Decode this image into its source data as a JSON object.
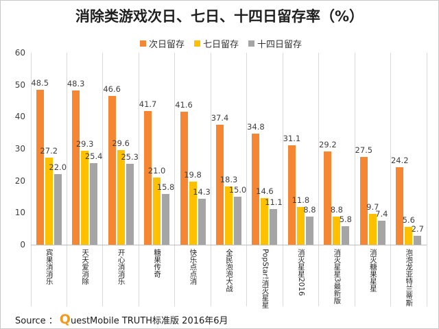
{
  "chart_data": {
    "type": "bar",
    "title": "消除类游戏次日、七日、十四日留存率（%）",
    "categories": [
      "宾果消消乐",
      "天天爱消除",
      "开心消消乐",
      "糖果传奇",
      "快乐点点消",
      "全民泡泡大战",
      "PopStar!消灭星星",
      "消灭星星2016",
      "消灭星星3最新版",
      "消灭糖果星星",
      "泡泡龙亚特兰蒂斯"
    ],
    "series": [
      {
        "name": "次日留存",
        "color": "#F58634",
        "values": [
          48.5,
          48.3,
          46.6,
          41.7,
          41.6,
          37.4,
          34.8,
          31.1,
          29.2,
          27.5,
          24.2
        ]
      },
      {
        "name": "七日留存",
        "color": "#FFC000",
        "values": [
          27.2,
          29.3,
          29.6,
          21.0,
          19.8,
          18.3,
          14.6,
          11.8,
          8.8,
          9.7,
          5.6
        ]
      },
      {
        "name": "十四日留存",
        "color": "#A5A5A5",
        "values": [
          22.0,
          25.4,
          25.3,
          15.8,
          14.3,
          15.0,
          11.1,
          8.8,
          5.8,
          7.4,
          2.7
        ]
      }
    ],
    "ylim": [
      0,
      60
    ],
    "yticks": [
      0,
      10,
      20,
      30,
      40,
      50,
      60
    ],
    "legend": "top",
    "data_labels": true
  },
  "source": {
    "label": "Source ：",
    "text": "QuestMobile TRUTH标准版 2016年6月",
    "logo_color": "#F39A1E"
  }
}
